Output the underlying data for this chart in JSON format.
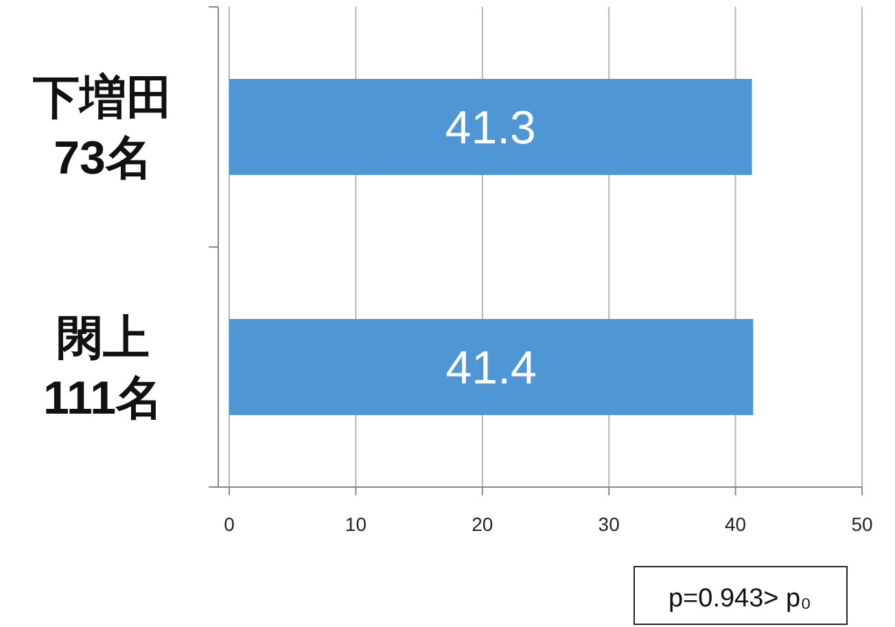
{
  "chart_data": {
    "type": "bar",
    "orientation": "horizontal",
    "categories": [
      "下増田\n73名",
      "閖上\n111名"
    ],
    "values": [
      41.3,
      41.4
    ],
    "color": "#4f96d4",
    "xlim": [
      0,
      50
    ],
    "xticks": [
      0,
      10,
      20,
      30,
      40,
      50
    ],
    "grid": "x",
    "data_labels": true,
    "annotations": [
      "p=0.943> p₀"
    ]
  }
}
